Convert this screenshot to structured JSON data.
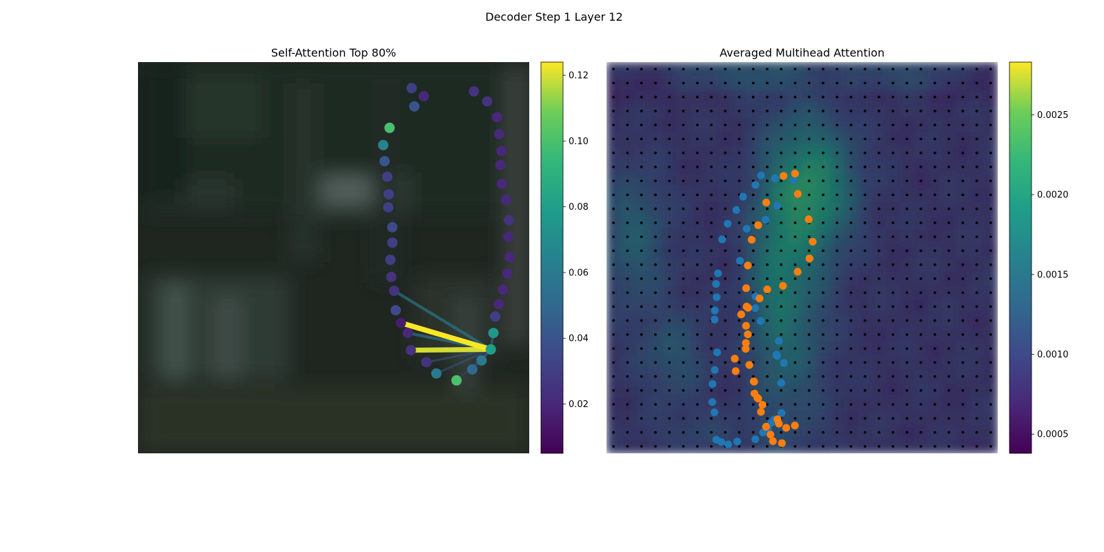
{
  "suptitle": "Decoder Step 1 Layer 12",
  "chart_data": [
    {
      "type": "scatter",
      "title": "Self-Attention Top 80%",
      "xlabel": "",
      "ylabel": "",
      "background": "blurred dark green-grey photo",
      "colormap": "viridis",
      "colorbar": {
        "ylim": [
          0.005,
          0.124
        ],
        "ticks": [
          0.02,
          0.04,
          0.06,
          0.08,
          0.1,
          0.12
        ],
        "tick_labels": [
          "0.02",
          "0.04",
          "0.06",
          "0.08",
          "0.10",
          "0.12"
        ]
      },
      "points": [
        {
          "x": 396.6,
          "y": 37.7,
          "v": 0.03
        },
        {
          "x": 414.2,
          "y": 49.3,
          "v": 0.02
        },
        {
          "x": 400.5,
          "y": 64.2,
          "v": 0.04
        },
        {
          "x": 364.6,
          "y": 95.3,
          "v": 0.1
        },
        {
          "x": 355.4,
          "y": 120.2,
          "v": 0.065
        },
        {
          "x": 357.4,
          "y": 143.6,
          "v": 0.04
        },
        {
          "x": 361.2,
          "y": 166.1,
          "v": 0.03
        },
        {
          "x": 363.4,
          "y": 191.6,
          "v": 0.03
        },
        {
          "x": 362.7,
          "y": 210.5,
          "v": 0.03
        },
        {
          "x": 368.5,
          "y": 239.3,
          "v": 0.035
        },
        {
          "x": 368.7,
          "y": 261.7,
          "v": 0.03
        },
        {
          "x": 365.7,
          "y": 286.5,
          "v": 0.03
        },
        {
          "x": 367.1,
          "y": 311.3,
          "v": 0.025
        },
        {
          "x": 371.2,
          "y": 331.5,
          "v": 0.025
        },
        {
          "x": 373.5,
          "y": 359.6,
          "v": 0.035
        },
        {
          "x": 380.9,
          "y": 377.9,
          "v": 0.015
        },
        {
          "x": 391.1,
          "y": 392.6,
          "v": 0.02
        },
        {
          "x": 395.4,
          "y": 417.5,
          "v": 0.025
        },
        {
          "x": 418.0,
          "y": 434.9,
          "v": 0.025
        },
        {
          "x": 432.4,
          "y": 451.3,
          "v": 0.06
        },
        {
          "x": 461.6,
          "y": 461.3,
          "v": 0.1
        },
        {
          "x": 484.4,
          "y": 445.4,
          "v": 0.05
        },
        {
          "x": 497.9,
          "y": 432.4,
          "v": 0.06
        },
        {
          "x": 511.3,
          "y": 416.4,
          "v": 0.08
        },
        {
          "x": 515.1,
          "y": 392.6,
          "v": 0.075
        },
        {
          "x": 517.7,
          "y": 368.7,
          "v": 0.03
        },
        {
          "x": 523.0,
          "y": 350.9,
          "v": 0.02
        },
        {
          "x": 529.0,
          "y": 329.8,
          "v": 0.02
        },
        {
          "x": 535.3,
          "y": 306.5,
          "v": 0.02
        },
        {
          "x": 538.9,
          "y": 282.8,
          "v": 0.02
        },
        {
          "x": 536.7,
          "y": 253.0,
          "v": 0.02
        },
        {
          "x": 537.6,
          "y": 229.1,
          "v": 0.025
        },
        {
          "x": 533.5,
          "y": 199.5,
          "v": 0.02
        },
        {
          "x": 527.3,
          "y": 176.3,
          "v": 0.02
        },
        {
          "x": 525.2,
          "y": 149.2,
          "v": 0.02
        },
        {
          "x": 526.7,
          "y": 128.9,
          "v": 0.02
        },
        {
          "x": 523.4,
          "y": 104.5,
          "v": 0.02
        },
        {
          "x": 520.4,
          "y": 79.9,
          "v": 0.02
        },
        {
          "x": 506.1,
          "y": 57.0,
          "v": 0.025
        },
        {
          "x": 486.9,
          "y": 42.5,
          "v": 0.025
        }
      ],
      "query_point_index": 23,
      "lines": [
        {
          "to": 15,
          "v": 0.124
        },
        {
          "to": 17,
          "v": 0.12
        },
        {
          "to": 13,
          "v": 0.06
        },
        {
          "to": 16,
          "v": 0.06
        },
        {
          "to": 18,
          "v": 0.04
        },
        {
          "to": 19,
          "v": 0.04
        },
        {
          "to": 20,
          "v": 0.03
        },
        {
          "to": 21,
          "v": 0.04
        },
        {
          "to": 22,
          "v": 0.04
        },
        {
          "to": 24,
          "v": 0.05
        }
      ]
    },
    {
      "type": "heatmap",
      "title": "Averaged Multihead Attention",
      "xlabel": "",
      "ylabel": "",
      "colormap": "viridis",
      "grid_rows": 28,
      "grid_cols": 28,
      "colorbar": {
        "ylim": [
          0.00038,
          0.00283
        ],
        "ticks": [
          0.0005,
          0.001,
          0.0015,
          0.002,
          0.0025
        ],
        "tick_labels": [
          "0.0005",
          "0.0010",
          "0.0015",
          "0.0020",
          "0.0025"
        ]
      },
      "blobs": [
        {
          "cx": 0.54,
          "cy": 0.32,
          "sx": 0.07,
          "sy": 0.11,
          "a": 0.0014
        },
        {
          "cx": 0.43,
          "cy": 0.55,
          "sx": 0.05,
          "sy": 0.22,
          "a": 0.001
        },
        {
          "cx": 0.5,
          "cy": 0.55,
          "sx": 0.06,
          "sy": 0.3,
          "a": 0.0006
        },
        {
          "cx": 0.07,
          "cy": 0.45,
          "sx": 0.06,
          "sy": 0.12,
          "a": 0.0008
        },
        {
          "cx": 0.17,
          "cy": 0.75,
          "sx": 0.06,
          "sy": 0.08,
          "a": 0.0006
        },
        {
          "cx": 0.35,
          "cy": 0.04,
          "sx": 0.12,
          "sy": 0.03,
          "a": 0.0007
        },
        {
          "cx": 0.75,
          "cy": 0.04,
          "sx": 0.1,
          "sy": 0.03,
          "a": 0.0006
        },
        {
          "cx": 0.25,
          "cy": 0.95,
          "sx": 0.1,
          "sy": 0.04,
          "a": 0.0003
        }
      ],
      "series": [
        {
          "name": "",
          "color": "#1f77b4",
          "points": [
            [
              522.1,
              29.7
            ],
            [
              535.7,
              30.2
            ],
            [
              523.8,
              36.7
            ],
            [
              515.4,
              40.3
            ],
            [
              501.6,
              42.6
            ],
            [
              496.7,
              50.8
            ],
            [
              507.9,
              59.9
            ],
            [
              507.8,
              62.9
            ],
            [
              511.7,
              66.2
            ],
            [
              524.9,
              71.3
            ],
            [
              523.1,
              74.8
            ],
            [
              523.6,
              75.1
            ],
            [
              528.5,
              76.9
            ],
            [
              526.6,
              82.0
            ],
            [
              526.8,
              89.7
            ],
            [
              521.3,
              91.4
            ],
            [
              519.4,
              92.2
            ],
            [
              516.9,
              93.7
            ],
            [
              513.4,
              94.7
            ],
            [
              507.8,
              96.4
            ],
            [
              494.7,
              97.0
            ],
            [
              488.2,
              97.7
            ],
            [
              483.1,
              97.1
            ],
            [
              479.5,
              96.5
            ],
            [
              478.2,
              89.5
            ],
            [
              476.6,
              86.9
            ],
            [
              476.8,
              82.3
            ],
            [
              478.4,
              78.7
            ],
            [
              480.2,
              74.2
            ],
            [
              478.3,
              65.8
            ],
            [
              478.5,
              63.5
            ],
            [
              479.8,
              60.1
            ],
            [
              479.4,
              56.7
            ],
            [
              480.8,
              54.0
            ],
            [
              483.8,
              45.3
            ],
            [
              487.8,
              41.3
            ],
            [
              494.1,
              37.8
            ],
            [
              499.0,
              34.4
            ],
            [
              508.0,
              31.4
            ],
            [
              512.0,
              29.0
            ]
          ]
        },
        {
          "name": "",
          "color": "#ff7f0e",
          "points": [
            [
              528.3,
              29.1
            ],
            [
              536.6,
              28.5
            ],
            [
              538.6,
              33.7
            ],
            [
              546.5,
              40.2
            ],
            [
              549.4,
              45.9
            ],
            [
              547.1,
              50.2
            ],
            [
              538.5,
              53.6
            ],
            [
              527.9,
              57.2
            ],
            [
              516.5,
              58.1
            ],
            [
              510.9,
              60.4
            ],
            [
              502.6,
              62.8
            ],
            [
              497.6,
              64.5
            ],
            [
              502.4,
              69.6
            ],
            [
              500.9,
              73.3
            ],
            [
              492.9,
              75.8
            ],
            [
              493.6,
              79.0
            ],
            [
              506.7,
              81.6
            ],
            [
              507.2,
              84.7
            ],
            [
              509.9,
              86.0
            ],
            [
              513.0,
              87.6
            ],
            [
              523.9,
              91.3
            ],
            [
              524.9,
              92.4
            ],
            [
              530.2,
              93.5
            ],
            [
              536.5,
              92.9
            ],
            [
              527.1,
              97.4
            ],
            [
              520.6,
              96.9
            ],
            [
              518.8,
              95.2
            ],
            [
              515.6,
              93.2
            ],
            [
              511.9,
              89.4
            ],
            [
              509.3,
              85.8
            ],
            [
              507.0,
              81.7
            ],
            [
              503.5,
              77.4
            ],
            [
              501.0,
              71.8
            ],
            [
              501.1,
              67.4
            ],
            [
              501.5,
              62.5
            ],
            [
              501.2,
              57.8
            ],
            [
              502.4,
              52.0
            ],
            [
              505.2,
              45.4
            ],
            [
              509.9,
              41.7
            ],
            [
              515.7,
              35.9
            ]
          ]
        }
      ]
    }
  ]
}
